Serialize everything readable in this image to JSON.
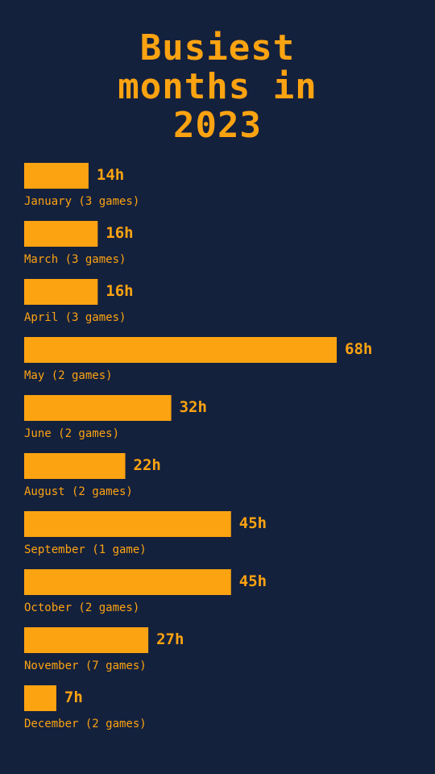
{
  "chart_data": {
    "type": "bar",
    "orientation": "horizontal",
    "title_lines": [
      "Busiest",
      "months in",
      "2023"
    ],
    "categories": [
      "January (3 games)",
      "March (3 games)",
      "April (3 games)",
      "May (2 games)",
      "June (2 games)",
      "August (2 games)",
      "September (1 game)",
      "October (2 games)",
      "November (7 games)",
      "December (2 games)"
    ],
    "values": [
      14,
      16,
      16,
      68,
      32,
      22,
      45,
      45,
      27,
      7
    ],
    "value_labels": [
      "14h",
      "16h",
      "16h",
      "68h",
      "32h",
      "22h",
      "45h",
      "45h",
      "27h",
      "7h"
    ],
    "xlim": [
      0,
      68
    ],
    "grid": false,
    "legend": "none"
  },
  "colors": {
    "background": "#14213d",
    "accent": "#fca311"
  }
}
